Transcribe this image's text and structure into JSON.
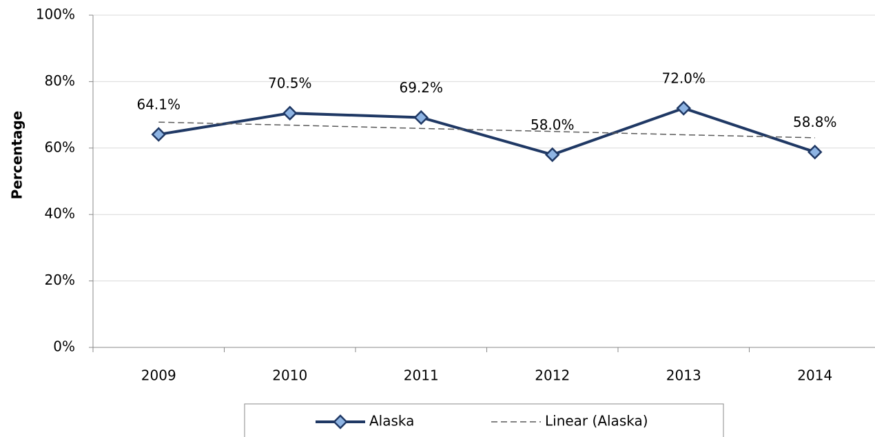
{
  "chart_data": {
    "type": "line",
    "y_label": "Percentage",
    "categories": [
      "2009",
      "2010",
      "2011",
      "2012",
      "2013",
      "2014"
    ],
    "series": [
      {
        "name": "Alaska",
        "color": "#1f3864",
        "marker_color": "#8eb4e3",
        "values": [
          64.1,
          70.5,
          69.2,
          58.0,
          72.0,
          58.8
        ],
        "value_labels": [
          "64.1%",
          "70.5%",
          "69.2%",
          "58.0%",
          "72.0%",
          "58.8%"
        ]
      },
      {
        "name": "Linear (Alaska)",
        "color": "#595959",
        "dashed": true,
        "values": [
          67.8,
          66.9,
          65.9,
          65.0,
          64.0,
          63.1
        ]
      }
    ],
    "ylim": [
      0,
      100
    ],
    "yticks": [
      {
        "value": 0,
        "label": "0%"
      },
      {
        "value": 20,
        "label": "20%"
      },
      {
        "value": 40,
        "label": "40%"
      },
      {
        "value": 60,
        "label": "60%"
      },
      {
        "value": 80,
        "label": "80%"
      },
      {
        "value": 100,
        "label": "100%"
      }
    ],
    "grid": true,
    "legend": "bottom"
  }
}
